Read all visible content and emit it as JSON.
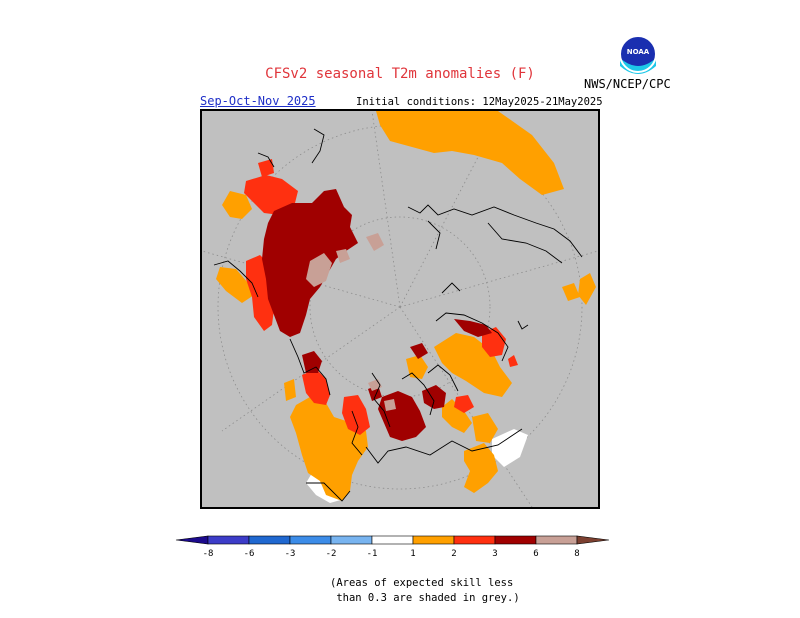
{
  "header": {
    "title": "CFSv2 seasonal T2m anomalies (F)",
    "title_color": "#e0353b",
    "agency": "NWS/NCEP/CPC",
    "logo_text": "NOAA",
    "season": "Sep-Oct-Nov 2025",
    "season_color": "#2030c8",
    "initial_conditions": "Initial conditions: 12May2025-21May2025"
  },
  "map": {
    "projection": "north-polar-stereographic",
    "background_color": "#c0c0c0",
    "land_outline_color": "#000000",
    "graticule": "dotted"
  },
  "legend": {
    "ticks": [
      "-8",
      "-6",
      "-3",
      "-2",
      "-1",
      "1",
      "2",
      "3",
      "6",
      "8"
    ],
    "colors": {
      "lt_-8": "#1c0a8c",
      "-8_-6": "#3c3cc8",
      "-6_-3": "#2068d0",
      "-3_-2": "#3c8ce8",
      "-2_-1": "#78b4f0",
      "-1_1": "#ffffff",
      "1_2": "#ffa000",
      "2_3": "#ff3010",
      "3_6": "#a00000",
      "6_8": "#c8a096",
      "gt_8": "#7c4030"
    }
  },
  "note": {
    "line1": "(Areas of expected skill less",
    "line2": " than 0.3 are shaded in grey.)"
  }
}
